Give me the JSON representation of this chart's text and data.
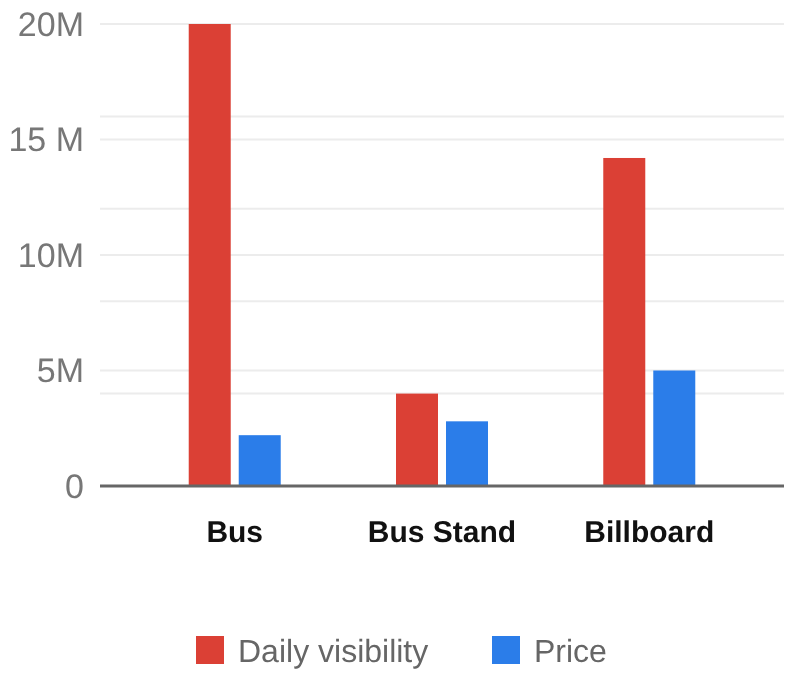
{
  "chart_data": {
    "type": "bar",
    "categories": [
      "Bus",
      "Bus Stand",
      "Billboard"
    ],
    "series": [
      {
        "name": "Daily visibility",
        "color": "#db4035",
        "values": [
          20,
          4,
          14.2
        ]
      },
      {
        "name": "Price",
        "color": "#2b7de9",
        "values": [
          2.2,
          2.8,
          5
        ]
      }
    ],
    "ylim": [
      0,
      20
    ],
    "yticks": [
      {
        "value": 0,
        "label": "0"
      },
      {
        "value": 4,
        "label": null
      },
      {
        "value": 5,
        "label": "5M"
      },
      {
        "value": 8,
        "label": null
      },
      {
        "value": 10,
        "label": "10M"
      },
      {
        "value": 12,
        "label": null
      },
      {
        "value": 15,
        "label": "15 M"
      },
      {
        "value": 16,
        "label": null
      },
      {
        "value": 20,
        "label": "20M"
      }
    ],
    "grid": true,
    "legend": "bottom"
  }
}
